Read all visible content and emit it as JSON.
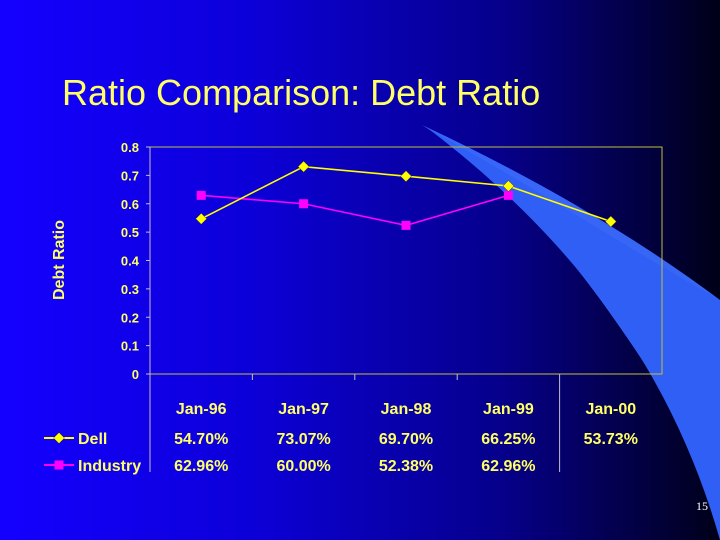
{
  "slide": {
    "title": "Ratio Comparison:  Debt Ratio",
    "page_number": "15"
  },
  "colors": {
    "background": "#1400ff",
    "text": "#ffff66",
    "dell": "#ffff00",
    "industry": "#ff00ff",
    "axis": "#c0c0c0",
    "swoosh": "#3a6cff"
  },
  "chart_data": {
    "type": "line",
    "title": "",
    "ylabel": "Debt Ratio",
    "xlabel": "",
    "ylim": [
      0,
      0.8
    ],
    "yticks": [
      "0",
      "0.1",
      "0.2",
      "0.3",
      "0.4",
      "0.5",
      "0.6",
      "0.7",
      "0.8"
    ],
    "categories": [
      "Jan-96",
      "Jan-97",
      "Jan-98",
      "Jan-99",
      "Jan-00"
    ],
    "grid": false,
    "legend_placement": "bottom-left data table",
    "series": [
      {
        "name": "Dell",
        "marker": "diamond",
        "values": [
          0.547,
          0.7307,
          0.697,
          0.6625,
          0.5373
        ],
        "table_labels": [
          "54.70%",
          "73.07%",
          "69.70%",
          "66.25%",
          "53.73%"
        ]
      },
      {
        "name": "Industry",
        "marker": "square",
        "values": [
          0.6296,
          0.6,
          0.5238,
          0.6296,
          null
        ],
        "table_labels": [
          "62.96%",
          "60.00%",
          "52.38%",
          "62.96%",
          ""
        ]
      }
    ]
  }
}
